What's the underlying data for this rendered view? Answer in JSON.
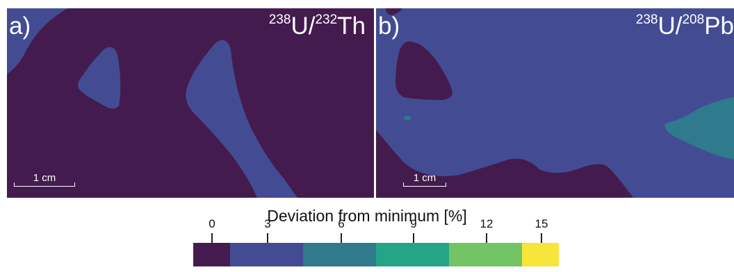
{
  "colors": {
    "level0": "#441b4e",
    "level3": "#434c93",
    "level6": "#2f7a8d",
    "level9": "#23a586",
    "level12": "#72c464",
    "level15": "#f7e53a"
  },
  "panels": [
    {
      "letter": "a)",
      "ratio_num_mass": "238",
      "ratio_num_elem": "U/",
      "ratio_den_mass": "232",
      "ratio_den_elem": "Th",
      "scalebar_label": "1 cm"
    },
    {
      "letter": "b)",
      "ratio_num_mass": "238",
      "ratio_num_elem": "U/",
      "ratio_den_mass": "208",
      "ratio_den_elem": "Pb",
      "scalebar_label": "1 cm"
    }
  ],
  "colorbar": {
    "title": "Deviation from minimum [%]",
    "ticks": [
      "0",
      "3",
      "6",
      "9",
      "12",
      "15"
    ]
  }
}
